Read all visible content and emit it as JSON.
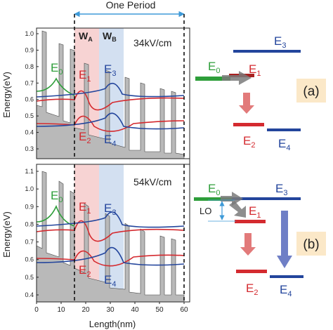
{
  "header": {
    "period_label": "One Period"
  },
  "colors": {
    "e0": "#2e9e3a",
    "e1": "#d42a2f",
    "e2": "#d42a2f",
    "e3": "#23459c",
    "e4": "#23459c",
    "wa_band": "#f5c8c8",
    "wb_band": "#c8d8ee",
    "arrow_gray": "#7a7a7a",
    "arrow_red": "#e27a7a",
    "arrow_blue": "#6f7fc6",
    "label_box": "#fbe8c8"
  },
  "shared": {
    "x_axis_label": "Length(nm)",
    "x_ticks": [
      "0",
      "10",
      "20",
      "30",
      "40",
      "50",
      "60"
    ],
    "y_axis_label": "Energy(eV)",
    "wa_label": "WA",
    "wb_label": "WB"
  },
  "panel_a": {
    "field_label": "34kV/cm",
    "y_ticks": [
      "0.3",
      "0.4",
      "0.5",
      "0.6",
      "0.7",
      "0.8",
      "0.9",
      "1.0"
    ],
    "wave_labels": {
      "e0": "E0",
      "e1": "E1",
      "e2": "E2",
      "e3": "E3",
      "e4": "E4"
    },
    "diagram_labels": {
      "e0": "E0",
      "e1": "E1",
      "e2": "E2",
      "e3": "E3",
      "e4": "E4"
    },
    "panel_id": "(a)"
  },
  "panel_b": {
    "field_label": "54kV/cm",
    "y_ticks": [
      "0.4",
      "0.5",
      "0.6",
      "0.7",
      "0.8",
      "0.9",
      "1.0",
      "1.1"
    ],
    "wave_labels": {
      "e0": "E0",
      "e1": "E1",
      "e2": "E2",
      "e3": "E3",
      "e4": "E4"
    },
    "diagram_labels": {
      "e0": "E0",
      "e1": "E1",
      "e2": "E2",
      "e3": "E3",
      "e4": "E4"
    },
    "lo_label": "LO",
    "panel_id": "(b)"
  }
}
